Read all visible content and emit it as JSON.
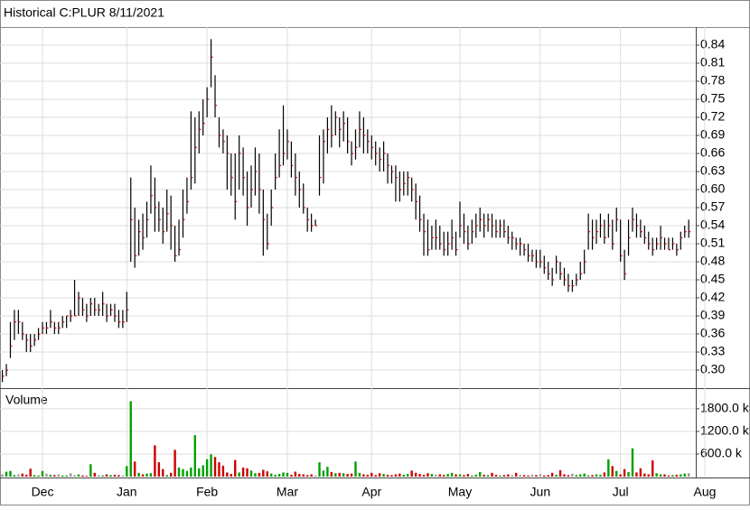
{
  "chart_data": {
    "type": "hlc",
    "title": "Historical C:PLUR 8/11/2021",
    "volume_title": "Volume",
    "categories": [
      null,
      null,
      null,
      null,
      null,
      null,
      null,
      null,
      null,
      null,
      "Dec",
      null,
      null,
      null,
      null,
      null,
      null,
      null,
      null,
      null,
      null,
      null,
      null,
      null,
      null,
      null,
      null,
      null,
      null,
      null,
      null,
      "Jan",
      null,
      null,
      null,
      null,
      null,
      null,
      null,
      null,
      null,
      null,
      null,
      null,
      null,
      null,
      null,
      null,
      null,
      null,
      null,
      "Feb",
      null,
      null,
      null,
      null,
      null,
      null,
      null,
      null,
      null,
      null,
      null,
      null,
      null,
      null,
      null,
      null,
      null,
      null,
      null,
      "Mar",
      null,
      null,
      null,
      null,
      null,
      null,
      null,
      null,
      null,
      null,
      null,
      null,
      null,
      null,
      null,
      null,
      null,
      null,
      null,
      null,
      "Apr",
      null,
      null,
      null,
      null,
      null,
      null,
      null,
      null,
      null,
      null,
      null,
      null,
      null,
      null,
      null,
      null,
      null,
      null,
      null,
      null,
      null,
      "May",
      null,
      null,
      null,
      null,
      null,
      null,
      null,
      null,
      null,
      null,
      null,
      null,
      null,
      null,
      null,
      null,
      null,
      null,
      null,
      "Jun",
      null,
      null,
      null,
      null,
      null,
      null,
      null,
      null,
      null,
      null,
      null,
      null,
      null,
      null,
      null,
      null,
      null,
      null,
      null,
      "Jul",
      null,
      null,
      null,
      null,
      null,
      null,
      null,
      null,
      null,
      null,
      null,
      null,
      null,
      null,
      null,
      null,
      null,
      null,
      null,
      null,
      "Aug"
    ],
    "high": [
      0.3,
      0.31,
      0.38,
      0.4,
      0.4,
      0.38,
      0.36,
      0.36,
      0.36,
      0.37,
      0.38,
      0.38,
      0.4,
      0.38,
      0.38,
      0.39,
      0.39,
      0.4,
      0.45,
      0.43,
      0.42,
      0.41,
      0.42,
      0.42,
      0.41,
      0.43,
      0.41,
      0.41,
      0.41,
      0.4,
      0.4,
      0.43,
      0.62,
      0.57,
      0.55,
      0.56,
      0.58,
      0.64,
      0.62,
      0.58,
      0.57,
      0.6,
      0.59,
      0.54,
      0.55,
      0.6,
      0.62,
      0.73,
      0.72,
      0.73,
      0.75,
      0.77,
      0.85,
      0.79,
      0.72,
      0.7,
      0.69,
      0.66,
      0.66,
      0.69,
      0.67,
      0.63,
      0.64,
      0.67,
      0.66,
      0.6,
      0.56,
      0.6,
      0.66,
      0.7,
      0.74,
      0.7,
      0.68,
      0.66,
      0.63,
      0.61,
      0.57,
      0.56,
      0.55,
      0.69,
      0.7,
      0.72,
      0.74,
      0.73,
      0.72,
      0.73,
      0.72,
      0.68,
      0.7,
      0.73,
      0.72,
      0.7,
      0.69,
      0.68,
      0.67,
      0.68,
      0.66,
      0.64,
      0.64,
      0.63,
      0.63,
      0.63,
      0.62,
      0.61,
      0.59,
      0.56,
      0.55,
      0.54,
      0.55,
      0.54,
      0.53,
      0.53,
      0.55,
      0.53,
      0.58,
      0.56,
      0.54,
      0.55,
      0.56,
      0.57,
      0.56,
      0.56,
      0.56,
      0.55,
      0.55,
      0.55,
      0.54,
      0.53,
      0.52,
      0.52,
      0.51,
      0.51,
      0.5,
      0.5,
      0.5,
      0.49,
      0.48,
      0.47,
      0.49,
      0.48,
      0.47,
      0.46,
      0.45,
      0.46,
      0.48,
      0.5,
      0.56,
      0.55,
      0.55,
      0.56,
      0.55,
      0.56,
      0.55,
      0.57,
      0.55,
      0.5,
      0.55,
      0.57,
      0.56,
      0.55,
      0.54,
      0.53,
      0.52,
      0.52,
      0.54,
      0.52,
      0.52,
      0.52,
      0.51,
      0.53,
      0.54,
      0.55,
      null,
      null,
      null,
      null
    ],
    "low": [
      0.28,
      0.29,
      0.32,
      0.35,
      0.36,
      0.35,
      0.33,
      0.33,
      0.34,
      0.35,
      0.36,
      0.36,
      0.37,
      0.36,
      0.36,
      0.37,
      0.37,
      0.38,
      0.39,
      0.39,
      0.39,
      0.38,
      0.39,
      0.39,
      0.39,
      0.39,
      0.38,
      0.39,
      0.38,
      0.37,
      0.37,
      0.38,
      0.48,
      0.47,
      0.49,
      0.5,
      0.52,
      0.56,
      0.53,
      0.53,
      0.51,
      0.53,
      0.5,
      0.48,
      0.49,
      0.52,
      0.56,
      0.6,
      0.61,
      0.66,
      0.69,
      0.72,
      0.77,
      0.72,
      0.67,
      0.66,
      0.6,
      0.59,
      0.55,
      0.6,
      0.59,
      0.54,
      0.57,
      0.59,
      0.56,
      0.49,
      0.5,
      0.54,
      0.6,
      0.62,
      0.64,
      0.65,
      0.62,
      0.59,
      0.57,
      0.56,
      0.53,
      0.53,
      0.54,
      0.59,
      0.61,
      0.66,
      0.67,
      0.69,
      0.67,
      0.68,
      0.66,
      0.64,
      0.65,
      0.67,
      0.66,
      0.66,
      0.65,
      0.64,
      0.63,
      0.63,
      0.61,
      0.61,
      0.58,
      0.58,
      0.59,
      0.59,
      0.58,
      0.55,
      0.53,
      0.49,
      0.49,
      0.5,
      0.5,
      0.5,
      0.49,
      0.49,
      0.5,
      0.49,
      0.52,
      0.51,
      0.5,
      0.51,
      0.52,
      0.53,
      0.52,
      0.53,
      0.52,
      0.52,
      0.52,
      0.52,
      0.51,
      0.5,
      0.5,
      0.49,
      0.49,
      0.48,
      0.48,
      0.47,
      0.47,
      0.46,
      0.45,
      0.44,
      0.46,
      0.45,
      0.44,
      0.43,
      0.43,
      0.44,
      0.45,
      0.46,
      0.5,
      0.5,
      0.51,
      0.52,
      0.51,
      0.52,
      0.5,
      0.53,
      0.48,
      0.45,
      0.49,
      0.53,
      0.52,
      0.52,
      0.51,
      0.5,
      0.49,
      0.5,
      0.5,
      0.5,
      0.5,
      0.5,
      0.49,
      0.5,
      0.52,
      0.52,
      null,
      null,
      null,
      null
    ],
    "close": [
      0.29,
      0.3,
      0.34,
      0.38,
      0.38,
      0.36,
      0.35,
      0.34,
      0.35,
      0.36,
      0.37,
      0.37,
      0.38,
      0.37,
      0.37,
      0.38,
      0.39,
      0.39,
      0.39,
      0.42,
      0.4,
      0.39,
      0.41,
      0.4,
      0.4,
      0.41,
      0.39,
      0.4,
      0.39,
      0.38,
      0.38,
      0.4,
      0.55,
      0.49,
      0.53,
      0.52,
      0.55,
      0.59,
      0.57,
      0.55,
      0.53,
      0.56,
      0.54,
      0.49,
      0.5,
      0.55,
      0.58,
      0.62,
      0.67,
      0.7,
      0.71,
      0.75,
      0.82,
      0.74,
      0.69,
      0.68,
      0.66,
      0.62,
      0.58,
      0.66,
      0.62,
      0.57,
      0.6,
      0.63,
      0.6,
      0.55,
      0.51,
      0.57,
      0.62,
      0.64,
      0.66,
      0.68,
      0.64,
      0.62,
      0.6,
      0.57,
      0.55,
      0.54,
      0.54,
      0.62,
      0.68,
      0.7,
      0.69,
      0.72,
      0.7,
      0.71,
      0.68,
      0.66,
      0.67,
      0.7,
      0.69,
      0.68,
      0.67,
      0.66,
      0.65,
      0.66,
      0.64,
      0.63,
      0.62,
      0.6,
      0.61,
      0.62,
      0.6,
      0.58,
      0.55,
      0.53,
      0.5,
      0.52,
      0.52,
      0.51,
      0.5,
      0.51,
      0.52,
      0.5,
      0.54,
      0.53,
      0.51,
      0.53,
      0.54,
      0.55,
      0.54,
      0.55,
      0.54,
      0.53,
      0.54,
      0.53,
      0.52,
      0.52,
      0.51,
      0.51,
      0.5,
      0.49,
      0.49,
      0.48,
      0.48,
      0.47,
      0.46,
      0.45,
      0.48,
      0.46,
      0.45,
      0.44,
      0.44,
      0.45,
      0.46,
      0.48,
      0.53,
      0.52,
      0.53,
      0.54,
      0.52,
      0.54,
      0.51,
      0.55,
      0.49,
      0.46,
      0.52,
      0.55,
      0.54,
      0.53,
      0.52,
      0.51,
      0.5,
      0.51,
      0.52,
      0.51,
      0.5,
      0.51,
      0.5,
      0.52,
      0.53,
      0.53,
      null,
      null,
      null,
      null
    ],
    "volume": [
      60000,
      130000,
      150000,
      40000,
      60000,
      80000,
      50000,
      210000,
      40000,
      30000,
      150000,
      80000,
      50000,
      40000,
      60000,
      30000,
      30000,
      90000,
      40000,
      60000,
      30000,
      20000,
      330000,
      100000,
      40000,
      30000,
      60000,
      40000,
      50000,
      40000,
      30000,
      280000,
      2000000,
      400000,
      100000,
      60000,
      80000,
      90000,
      830000,
      380000,
      200000,
      40000,
      100000,
      710000,
      240000,
      200000,
      150000,
      240000,
      1100000,
      220000,
      300000,
      460000,
      590000,
      520000,
      380000,
      290000,
      110000,
      70000,
      440000,
      110000,
      240000,
      220000,
      160000,
      90000,
      100000,
      180000,
      140000,
      80000,
      50000,
      70000,
      110000,
      100000,
      50000,
      130000,
      70000,
      60000,
      40000,
      60000,
      30000,
      380000,
      160000,
      260000,
      120000,
      90000,
      100000,
      90000,
      70000,
      80000,
      400000,
      100000,
      60000,
      50000,
      100000,
      40000,
      90000,
      70000,
      50000,
      40000,
      60000,
      80000,
      50000,
      70000,
      160000,
      100000,
      70000,
      50000,
      90000,
      70000,
      50000,
      60000,
      40000,
      70000,
      100000,
      60000,
      60000,
      40000,
      70000,
      30000,
      50000,
      120000,
      50000,
      40000,
      100000,
      50000,
      30000,
      40000,
      60000,
      40000,
      100000,
      50000,
      40000,
      30000,
      50000,
      40000,
      60000,
      30000,
      40000,
      100000,
      50000,
      170000,
      60000,
      40000,
      80000,
      40000,
      60000,
      80000,
      30000,
      40000,
      60000,
      50000,
      110000,
      460000,
      280000,
      150000,
      60000,
      200000,
      120000,
      750000,
      110000,
      220000,
      80000,
      60000,
      430000,
      90000,
      60000,
      60000,
      30000,
      40000,
      50000,
      60000,
      80000,
      90000,
      null,
      null,
      null,
      null
    ],
    "ylim": [
      0.27,
      0.87
    ],
    "yticks": [
      {
        "value": 0.3,
        "label": "0.30"
      },
      0.33,
      0.36,
      0.39,
      0.42,
      0.45,
      0.48,
      0.51,
      0.54,
      0.57,
      {
        "value": 0.6,
        "label": "0.60"
      },
      0.63,
      0.66,
      0.69,
      0.72,
      0.75,
      0.78,
      0.81,
      0.84
    ],
    "y2lim": [
      0,
      2300000
    ],
    "y2ticks": [
      {
        "value": 600000,
        "label": "600.0 k"
      },
      {
        "value": 1200000,
        "label": "1200.0 k"
      },
      {
        "value": 1800000,
        "label": "1800.0 k"
      }
    ],
    "grid": true,
    "bar_color": "#000000",
    "close_color": "#cc0000",
    "up_color": "#00a000",
    "down_color": "#cc0000",
    "flat_color": "#999999"
  }
}
